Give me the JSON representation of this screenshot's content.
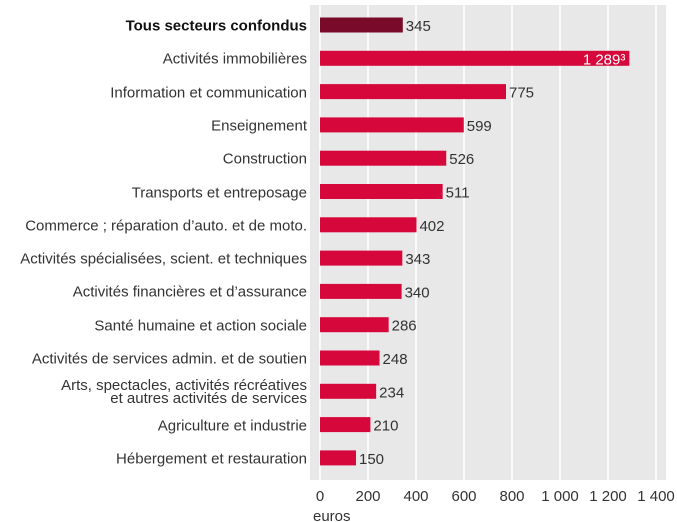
{
  "chart_data": {
    "type": "bar",
    "orientation": "horizontal",
    "categories": [
      "Tous secteurs confondus",
      "Activités immobilières",
      "Information et communication",
      "Enseignement",
      "Construction",
      "Transports et entreposage",
      "Commerce ; réparation d’auto. et de moto.",
      "Activités spécialisées, scient. et techniques",
      "Activités financières et d’assurance",
      "Santé humaine et action sociale",
      "Activités de services admin. et de soutien",
      "Arts, spectacles, activités récréatives\net autres activités de services",
      "Agriculture et industrie",
      "Hébergement et restauration"
    ],
    "values": [
      345,
      1289,
      775,
      599,
      526,
      511,
      402,
      343,
      340,
      286,
      248,
      234,
      210,
      150
    ],
    "value_labels": [
      "345",
      "1 289³",
      "775",
      "599",
      "526",
      "511",
      "402",
      "343",
      "340",
      "286",
      "248",
      "234",
      "210",
      "150"
    ],
    "colors": [
      "#7a0a2a",
      "#d6083b",
      "#d6083b",
      "#d6083b",
      "#d6083b",
      "#d6083b",
      "#d6083b",
      "#d6083b",
      "#d6083b",
      "#d6083b",
      "#d6083b",
      "#d6083b",
      "#d6083b",
      "#d6083b"
    ],
    "x_label": "euros",
    "xlim": [
      0,
      1400
    ],
    "xticks": [
      0,
      200,
      400,
      600,
      800,
      {
        "value": 1000,
        "label": "1 000"
      },
      {
        "value": 1200,
        "label": "1 200"
      },
      {
        "value": 1400,
        "label": "1 400"
      }
    ],
    "grid": true
  }
}
